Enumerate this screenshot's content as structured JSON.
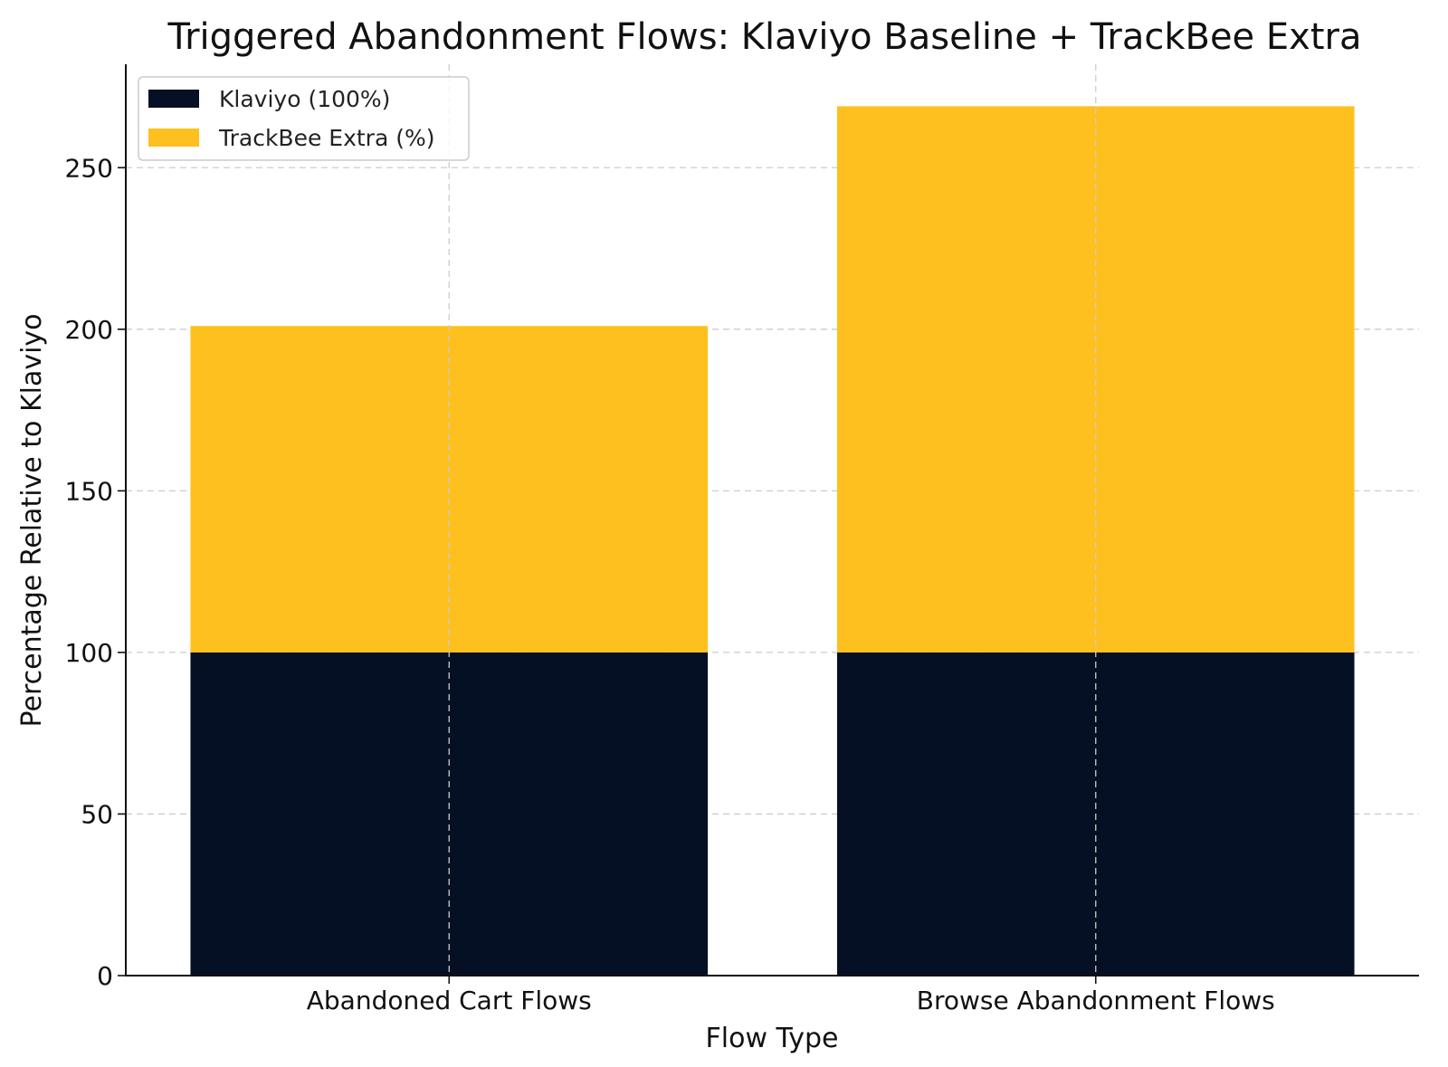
{
  "chart_data": {
    "type": "bar",
    "stacked": true,
    "title": "Triggered Abandonment Flows: Klaviyo Baseline + TrackBee Extra",
    "xlabel": "Flow Type",
    "ylabel": "Percentage Relative to Klaviyo",
    "categories": [
      "Abandoned Cart Flows",
      "Browse Abandonment Flows"
    ],
    "series": [
      {
        "name": "Klaviyo (100%)",
        "values": [
          100,
          100
        ],
        "color": "#061024"
      },
      {
        "name": "TrackBee Extra (%)",
        "values": [
          101,
          169
        ],
        "color": "#fdc01e"
      }
    ],
    "ylim": [
      0,
      282
    ],
    "yticks": [
      0,
      50,
      100,
      150,
      200,
      250
    ],
    "grid": true,
    "legend_position": "top-left"
  }
}
